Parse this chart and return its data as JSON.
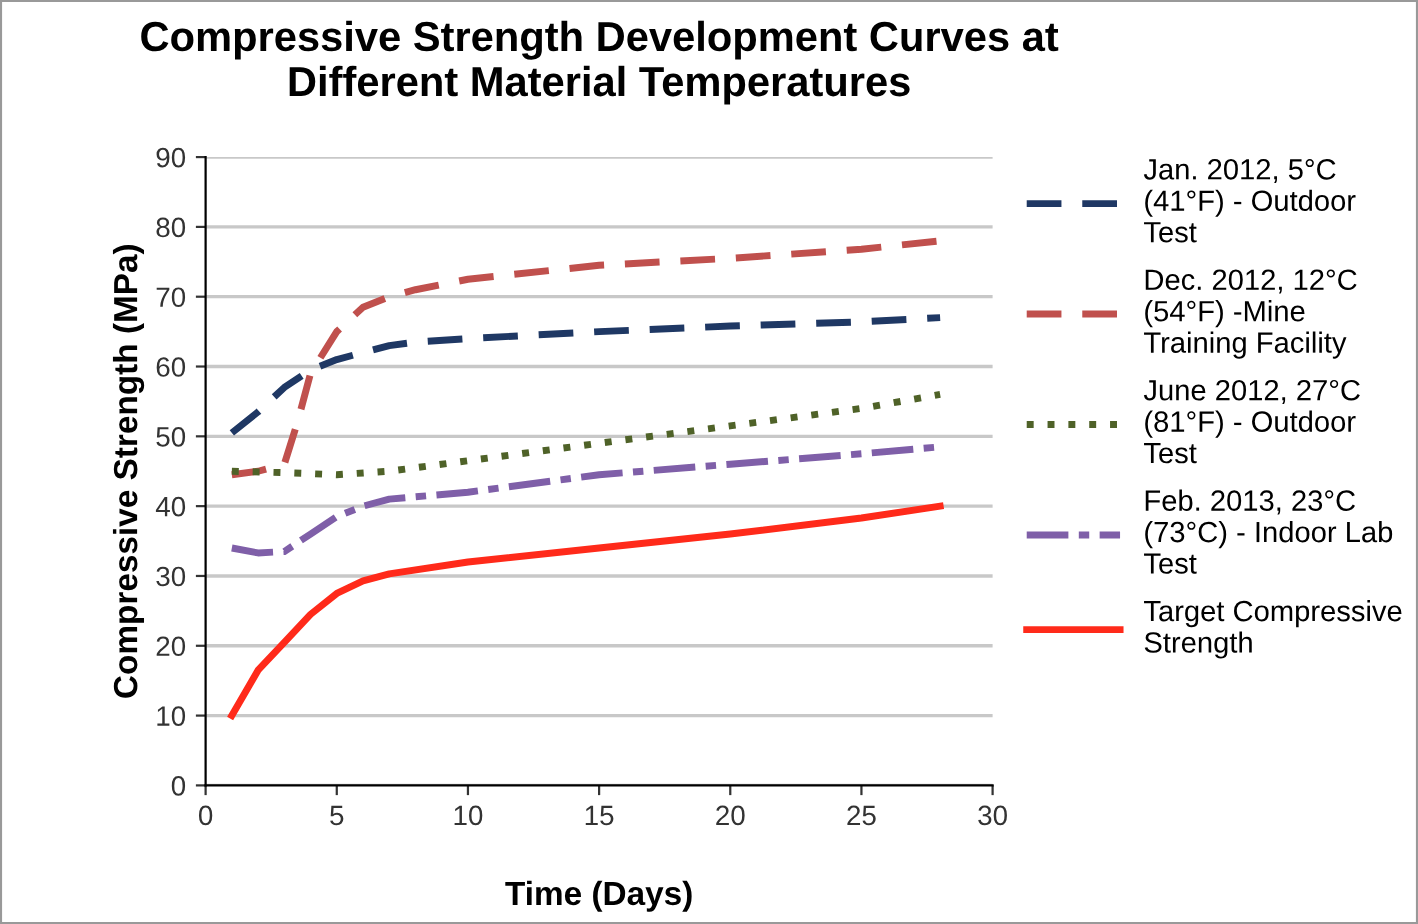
{
  "chart_data": {
    "type": "line",
    "title": "Compressive Strength Development Curves at\nDifferent Material Temperatures",
    "xlabel": "Time (Days)",
    "ylabel": "Compressive Strength (MPa)",
    "xlim": [
      0,
      30
    ],
    "xticks": [
      0,
      5,
      10,
      15,
      20,
      25,
      30
    ],
    "ylim": [
      0,
      90
    ],
    "yticks": [
      0,
      10,
      20,
      30,
      40,
      50,
      60,
      70,
      80,
      90
    ],
    "grid": "y",
    "legend": "right",
    "series": [
      {
        "name": "Jan. 2012, 5°C\n(41°F) - Outdoor\nTest",
        "color": "#1f3864",
        "line_style": "dashed",
        "x": [
          1,
          2,
          3,
          4,
          5,
          6,
          7,
          8,
          10,
          15,
          20,
          25,
          28
        ],
        "values": [
          50.5,
          53.5,
          57,
          59.5,
          61,
          62,
          63,
          63.5,
          64,
          65,
          65.8,
          66.4,
          67
        ]
      },
      {
        "name": "Dec. 2012, 12°C\n(54°F) -Mine\nTraining Facility",
        "color": "#c0504d",
        "line_style": "dashed",
        "x": [
          1,
          2,
          3,
          3.5,
          4,
          5,
          6,
          7,
          8,
          10,
          15,
          20,
          25,
          28
        ],
        "values": [
          44.5,
          45,
          46,
          52,
          59,
          65,
          68.5,
          70,
          71,
          72.5,
          74.5,
          75.5,
          76.8,
          78
        ]
      },
      {
        "name": "June 2012, 27°C\n(81°F) - Outdoor\nTest",
        "color": "#4f6228",
        "line_style": "dotted",
        "x": [
          1,
          3,
          5,
          7,
          10,
          15,
          20,
          25,
          28
        ],
        "values": [
          45,
          44.8,
          44.5,
          45,
          46.5,
          49,
          51.5,
          54,
          56
        ]
      },
      {
        "name": "Feb. 2013, 23°C\n(73°C) - Indoor Lab\nTest",
        "color": "#7f5fa8",
        "line_style": "dashdot",
        "x": [
          1,
          2,
          3,
          4,
          5,
          6,
          7,
          10,
          15,
          20,
          25,
          28
        ],
        "values": [
          34,
          33.3,
          33.5,
          36,
          38.5,
          40,
          41,
          42,
          44.5,
          46,
          47.5,
          48.5
        ]
      },
      {
        "name": "Target Compressive\nStrength",
        "color": "#ff2a1a",
        "line_style": "solid",
        "x": [
          1,
          2,
          3,
          4,
          5,
          6,
          7,
          10,
          15,
          20,
          25,
          28
        ],
        "values": [
          10,
          16.5,
          20.5,
          24.5,
          27.5,
          29.3,
          30.3,
          32,
          34,
          36,
          38.3,
          40
        ]
      }
    ]
  }
}
